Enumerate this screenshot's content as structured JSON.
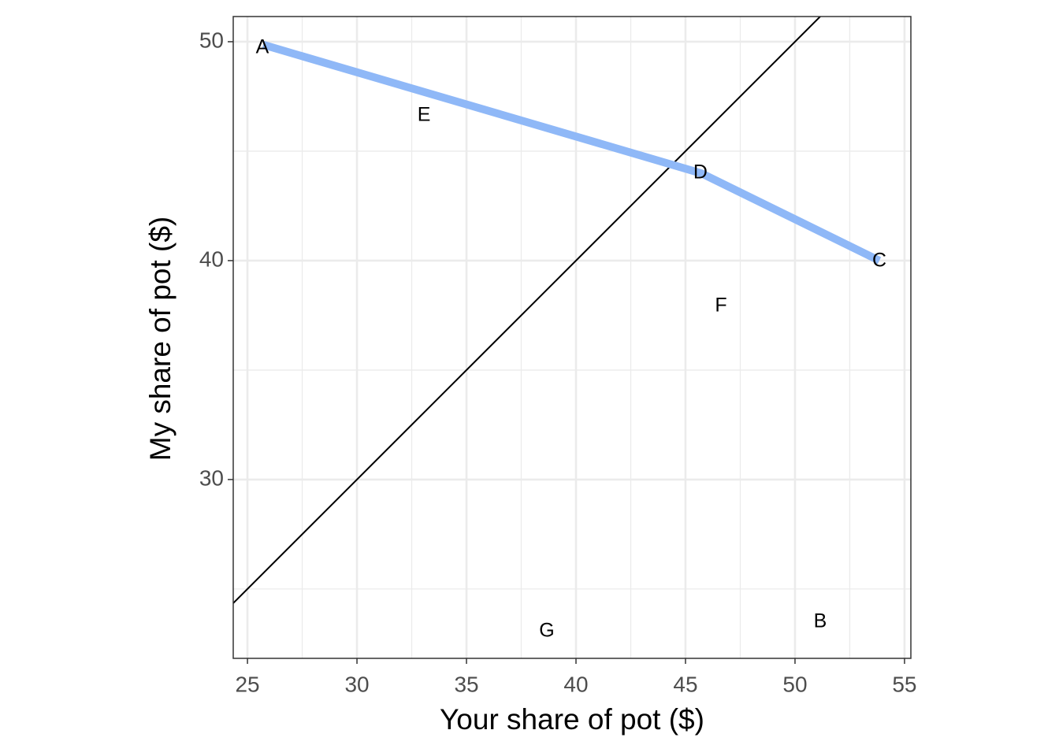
{
  "chart_data": {
    "type": "labeled_scatter",
    "x_label": "Your share of pot ($)",
    "y_label": "My share of pot ($)",
    "xlim": [
      24.35,
      55.29
    ],
    "ylim": [
      21.83,
      51.15
    ],
    "xticks": [
      25,
      30,
      35,
      40,
      45,
      50,
      55
    ],
    "yticks": [
      30,
      40,
      50
    ],
    "xminor_ticks": [
      27.5,
      32.5,
      37.5,
      42.5,
      47.5,
      52.5
    ],
    "yminor_ticks": [
      25,
      35,
      45
    ],
    "grid": true,
    "points": {
      "labels": [
        "A",
        "B",
        "C",
        "D",
        "E",
        "F",
        "G"
      ],
      "x": [
        25.68,
        51.15,
        53.85,
        45.68,
        33.06,
        46.62,
        38.67
      ],
      "y": [
        49.71,
        23.49,
        39.97,
        43.99,
        46.62,
        37.91,
        23.06
      ]
    },
    "curve": {
      "color": "#8fb8f7",
      "x": [
        25.72,
        45.72,
        53.85
      ],
      "y": [
        49.86,
        43.99,
        40.0
      ]
    },
    "reference_line": {
      "slope": 1,
      "intercept": 0,
      "color": "#000000"
    }
  }
}
